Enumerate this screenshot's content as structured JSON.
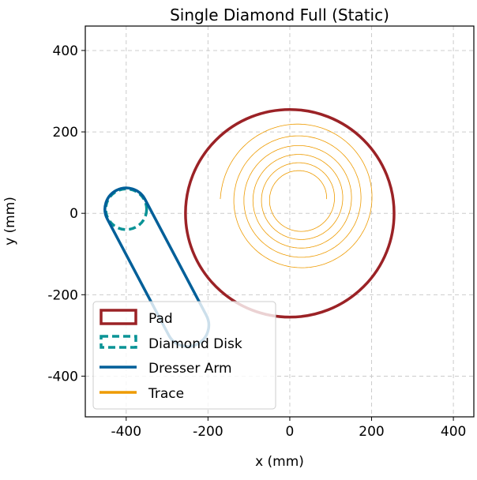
{
  "chart_data": {
    "type": "line",
    "title": "Single Diamond Full (Static)",
    "xlabel": "x (mm)",
    "ylabel": "y (mm)",
    "xlim": [
      -500,
      450
    ],
    "ylim": [
      -500,
      460
    ],
    "xticks": [
      -400,
      -200,
      0,
      200,
      400
    ],
    "yticks": [
      -400,
      -200,
      0,
      200,
      400
    ],
    "grid": true,
    "legend_placement": "lower-left",
    "pad": {
      "label": "Pad",
      "center": [
        0,
        0
      ],
      "radius": 255,
      "color": "#9b2226"
    },
    "diamond_disk": {
      "label": "Diamond Disk",
      "center": [
        -400,
        10
      ],
      "radius": 50,
      "color": "#0a9396"
    },
    "dresser_arm": {
      "label": "Dresser Arm",
      "start": [
        -400,
        10
      ],
      "end": [
        -250,
        -275
      ],
      "half_width": 52,
      "color": "#005f99"
    },
    "trace": {
      "label": "Trace",
      "color": "#ee9b00",
      "center": [
        25,
        35
      ],
      "r_start": 195,
      "r_end": 65,
      "turns": 5.5,
      "start_angle_deg": 180
    }
  }
}
